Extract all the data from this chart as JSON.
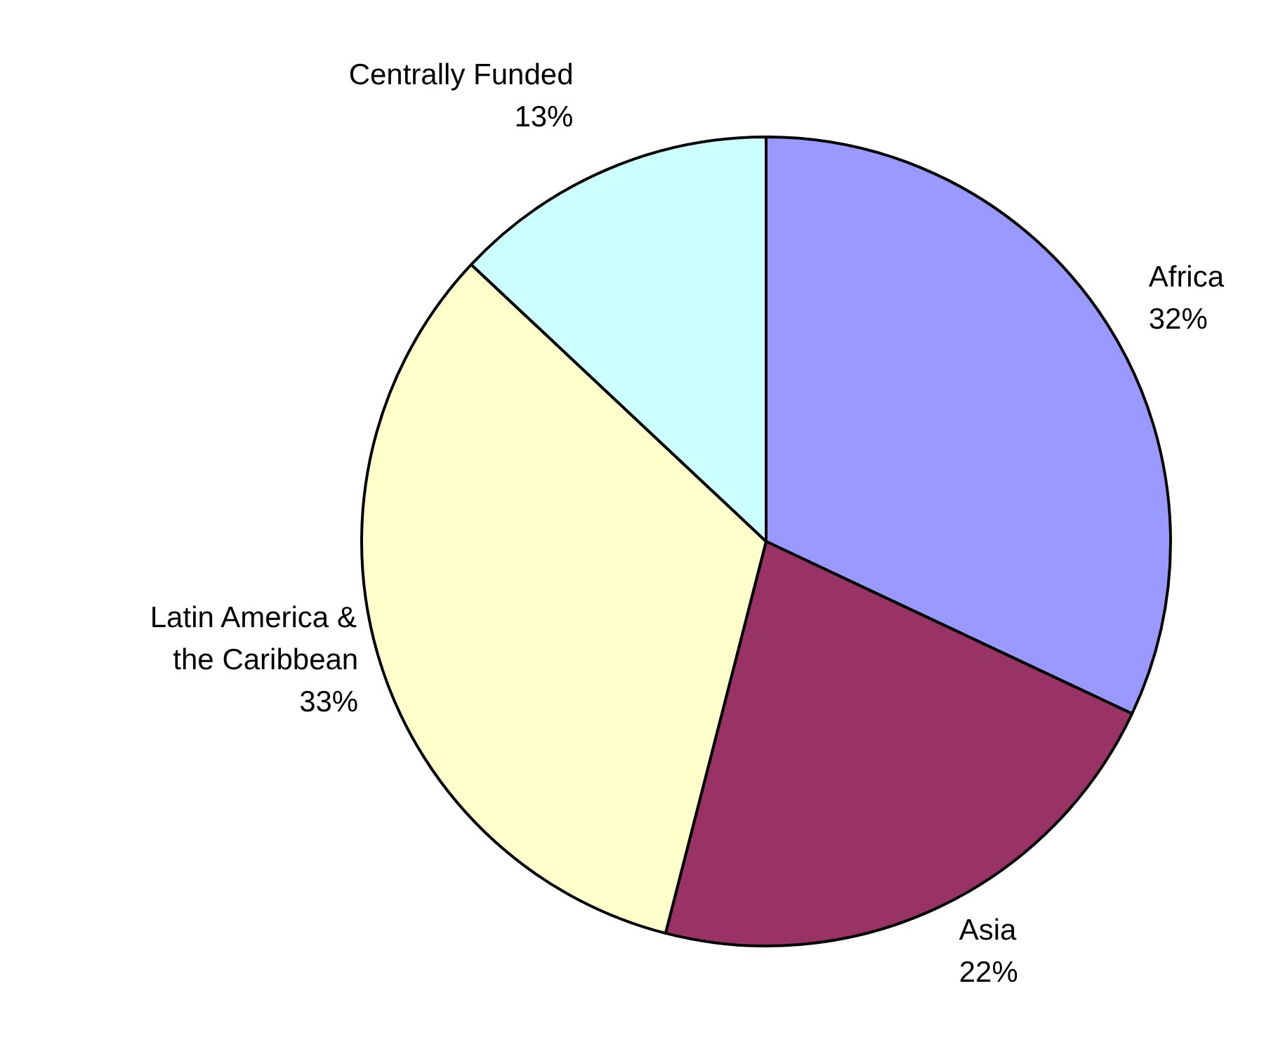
{
  "chart_data": {
    "type": "pie",
    "categories": [
      "Africa",
      "Asia",
      "Latin America & the Caribbean",
      "Centrally Funded"
    ],
    "values": [
      32,
      22,
      33,
      13
    ],
    "colors": [
      "#9999ff",
      "#993366",
      "#ffffcc",
      "#ccffff"
    ],
    "value_labels": [
      "32%",
      "22%",
      "33%",
      "13%"
    ]
  }
}
